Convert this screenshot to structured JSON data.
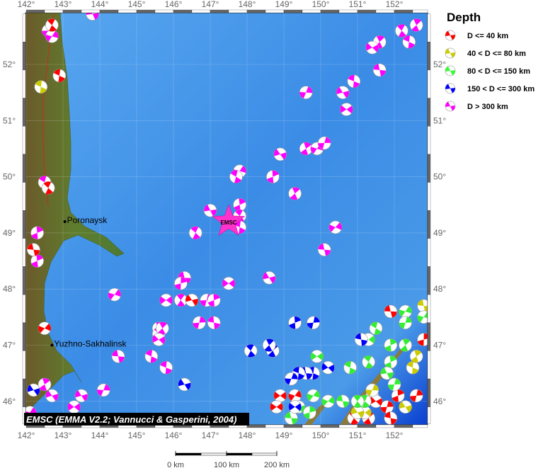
{
  "map": {
    "lon_range": [
      142,
      152.9
    ],
    "lat_range": [
      45.6,
      52.9
    ],
    "lon_ticks": [
      "142°",
      "143°",
      "144°",
      "145°",
      "146°",
      "147°",
      "148°",
      "149°",
      "150°",
      "151°",
      "152°"
    ],
    "lat_ticks": [
      "52°",
      "51°",
      "50°",
      "49°",
      "48°",
      "47°",
      "46°"
    ],
    "colors": {
      "sea": "#3d8ee8",
      "deep_sea": "#0a3fd0",
      "land": "#5a7a2c",
      "border": "#555555"
    },
    "cities": [
      {
        "name": "Poronaysk",
        "lon": 143.05,
        "lat": 49.2
      },
      {
        "name": "Yuzhno-Sakhalinsk",
        "lon": 142.7,
        "lat": 47.0
      }
    ],
    "epicenter": {
      "label": "EMSC",
      "lon": 147.5,
      "lat": 49.2,
      "color": "#ff33cc"
    },
    "credit": "EMSC (EMMA V2.2; Vannucci & Gasperini, 2004)",
    "scale_bar": {
      "labels": [
        "0 km",
        "100 km",
        "200 km"
      ]
    }
  },
  "legend": {
    "title": "Depth",
    "items": [
      {
        "label": "D <= 40 km",
        "color": "#ff0000"
      },
      {
        "label": "40 < D <= 80 km",
        "color": "#cccc00"
      },
      {
        "label": "80 < D <= 150 km",
        "color": "#33ff33"
      },
      {
        "label": "150 < D <= 300 km",
        "color": "#0000ff"
      },
      {
        "label": "D > 300 km",
        "color": "#ff00ff"
      }
    ]
  },
  "events": {
    "magenta": [
      [
        152.6,
        52.7
      ],
      [
        152.2,
        52.6
      ],
      [
        151.6,
        52.4
      ],
      [
        151.4,
        52.3
      ],
      [
        152.4,
        52.4
      ],
      [
        151.6,
        51.9
      ],
      [
        150.9,
        51.7
      ],
      [
        149.6,
        51.5
      ],
      [
        150.6,
        51.5
      ],
      [
        150.7,
        51.2
      ],
      [
        148.9,
        50.4
      ],
      [
        149.6,
        50.5
      ],
      [
        149.9,
        50.5
      ],
      [
        150.1,
        50.6
      ],
      [
        147.8,
        50.1
      ],
      [
        147.7,
        50.0
      ],
      [
        148.7,
        50.0
      ],
      [
        149.3,
        49.7
      ],
      [
        147.8,
        49.5
      ],
      [
        147.0,
        49.4
      ],
      [
        147.8,
        49.3
      ],
      [
        147.8,
        49.1
      ],
      [
        146.6,
        49.0
      ],
      [
        150.4,
        49.1
      ],
      [
        150.1,
        48.7
      ],
      [
        148.6,
        48.2
      ],
      [
        146.3,
        48.2
      ],
      [
        146.2,
        48.1
      ],
      [
        147.5,
        48.1
      ],
      [
        144.4,
        47.9
      ],
      [
        145.8,
        47.8
      ],
      [
        146.2,
        47.8
      ],
      [
        146.9,
        47.8
      ],
      [
        147.1,
        47.8
      ],
      [
        146.7,
        47.4
      ],
      [
        147.1,
        47.4
      ],
      [
        145.6,
        47.3
      ],
      [
        145.6,
        47.2
      ],
      [
        145.7,
        47.3
      ],
      [
        145.6,
        47.1
      ],
      [
        145.4,
        46.8
      ],
      [
        144.5,
        46.8
      ],
      [
        145.8,
        46.6
      ],
      [
        144.1,
        46.2
      ],
      [
        143.5,
        46.1
      ],
      [
        143.3,
        45.9
      ],
      [
        142.7,
        46.1
      ],
      [
        142.5,
        46.3
      ],
      [
        142.1,
        45.8
      ],
      [
        142.6,
        52.6
      ],
      [
        142.7,
        52.5
      ],
      [
        142.5,
        49.9
      ],
      [
        142.3,
        49.0
      ],
      [
        142.2,
        48.7
      ],
      [
        142.3,
        48.5
      ],
      [
        143.8,
        52.9
      ]
    ],
    "red": [
      [
        142.7,
        52.7
      ],
      [
        142.9,
        51.8
      ],
      [
        142.6,
        49.8
      ],
      [
        142.5,
        47.3
      ],
      [
        142.2,
        48.7
      ],
      [
        146.5,
        47.8
      ],
      [
        151.9,
        47.6
      ],
      [
        152.8,
        47.1
      ],
      [
        148.9,
        46.1
      ],
      [
        149.3,
        46.1
      ],
      [
        148.8,
        45.9
      ],
      [
        151.4,
        46.1
      ],
      [
        151.8,
        45.9
      ],
      [
        152.1,
        46.1
      ],
      [
        152.6,
        46.1
      ],
      [
        151.9,
        45.7
      ],
      [
        151.3,
        45.7
      ],
      [
        150.9,
        45.7
      ],
      [
        151.1,
        45.9
      ],
      [
        151.5,
        46.0
      ]
    ],
    "yellow": [
      [
        142.4,
        51.6
      ],
      [
        152.8,
        47.7
      ],
      [
        152.5,
        46.6
      ],
      [
        151.4,
        46.2
      ],
      [
        152.3,
        45.9
      ],
      [
        151.2,
        45.8
      ],
      [
        151.0,
        45.8
      ],
      [
        152.6,
        46.8
      ]
    ],
    "green": [
      [
        152.3,
        47.6
      ],
      [
        152.3,
        47.4
      ],
      [
        152.8,
        47.5
      ],
      [
        151.5,
        47.3
      ],
      [
        151.9,
        47.0
      ],
      [
        152.3,
        47.0
      ],
      [
        151.9,
        46.7
      ],
      [
        151.8,
        46.5
      ],
      [
        151.3,
        46.7
      ],
      [
        150.8,
        46.6
      ],
      [
        151.2,
        46.0
      ],
      [
        150.2,
        46.0
      ],
      [
        150.6,
        46.0
      ],
      [
        149.4,
        45.9
      ],
      [
        149.2,
        45.7
      ],
      [
        149.7,
        45.8
      ],
      [
        149.9,
        46.8
      ],
      [
        149.8,
        46.1
      ],
      [
        151.3,
        47.1
      ],
      [
        151.0,
        46.0
      ],
      [
        152.0,
        46.3
      ]
    ],
    "blue": [
      [
        149.3,
        47.4
      ],
      [
        149.8,
        47.4
      ],
      [
        151.1,
        47.1
      ],
      [
        148.7,
        46.9
      ],
      [
        148.1,
        46.9
      ],
      [
        148.6,
        47.0
      ],
      [
        150.2,
        46.6
      ],
      [
        149.8,
        46.5
      ],
      [
        149.6,
        46.5
      ],
      [
        149.4,
        46.5
      ],
      [
        149.2,
        46.4
      ],
      [
        146.3,
        46.3
      ],
      [
        149.3,
        45.9
      ],
      [
        142.2,
        46.2
      ]
    ]
  }
}
